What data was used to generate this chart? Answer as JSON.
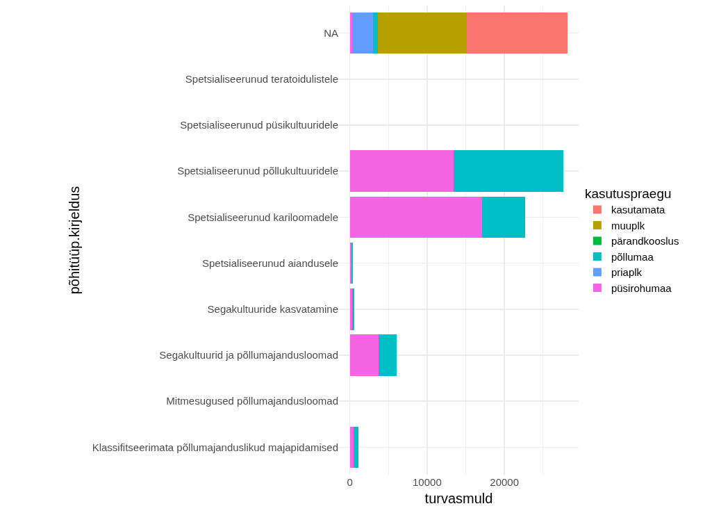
{
  "chart_data": {
    "type": "bar",
    "orientation": "horizontal",
    "stacked": true,
    "xlabel": "turvasmuld",
    "ylabel": "põhitüüp.kirjeldus",
    "legend_title": "kasutuspraegu",
    "legend": "right",
    "grid": true,
    "categories": [
      "NA",
      "Spetsialiseerunud teratoidulistele",
      "Spetsialiseerunud püsikultuuridele",
      "Spetsialiseerunud põllukultuuridele",
      "Spetsialiseerunud kariloomadele",
      "Spetsialiseerunud aiandusele",
      "Segakultuuride kasvatamine",
      "Segakultuurid ja põllumajandusloomad",
      "Mitmesugused põllumajandusloomad",
      "Klassifitseerimata põllumajanduslikud majapidamised"
    ],
    "xlim": [
      -1400,
      29600
    ],
    "xticks": [
      0,
      10000,
      20000
    ],
    "series": [
      {
        "name": "püsirohumaa",
        "color": "#f564e3",
        "values": [
          300,
          0,
          0,
          13400,
          17100,
          200,
          300,
          3700,
          0,
          500
        ]
      },
      {
        "name": "priaplk",
        "color": "#619cff",
        "values": [
          2700,
          0,
          0,
          0,
          0,
          0,
          0,
          0,
          0,
          0
        ]
      },
      {
        "name": "põllumaa",
        "color": "#00bfc4",
        "values": [
          600,
          0,
          0,
          14200,
          5600,
          200,
          300,
          2400,
          0,
          600
        ]
      },
      {
        "name": "pärandkooslus",
        "color": "#00ba38",
        "values": [
          0,
          0,
          0,
          0,
          null,
          0,
          0,
          0,
          0,
          0
        ]
      },
      {
        "name": "muuplk",
        "color": "#b79f00",
        "values": [
          11500,
          0,
          0,
          0,
          0,
          0,
          0,
          0,
          0,
          0
        ]
      },
      {
        "name": "kasutamata",
        "color": "#f8766d",
        "values": [
          13100,
          0,
          0,
          0,
          0,
          0,
          0,
          0,
          0,
          0
        ]
      }
    ]
  }
}
